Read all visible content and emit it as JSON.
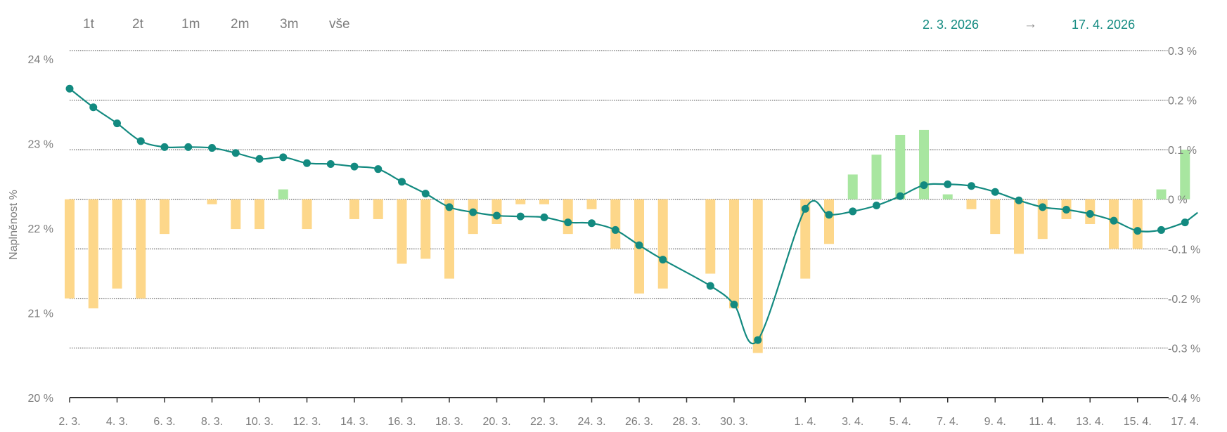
{
  "range_buttons": [
    "1t",
    "2t",
    "1m",
    "2m",
    "3m",
    "vše"
  ],
  "date_range": {
    "from": "2. 3. 2026",
    "arrow": "→",
    "to": "17. 4. 2026"
  },
  "colors": {
    "line": "#138a80",
    "bar_negative": "#fdd78a",
    "bar_positive": "#a8e6a0",
    "grid": "#444444",
    "text": "#7d7d7d",
    "accent": "#138a80"
  },
  "chart_data": {
    "type": "line",
    "ylabel": "Naplněnost %",
    "y_left_ticks": [
      "24 %",
      "23 %",
      "22 %",
      "21 %",
      "20 %"
    ],
    "y_right_ticks": [
      "0.3 %",
      "0.2 %",
      "0.1 %",
      "0 %",
      "-0.1 %",
      "-0.2 %",
      "-0.3 %",
      "-0.4 %"
    ],
    "ylim_left": [
      20,
      24.1
    ],
    "ylim_right": [
      -0.4,
      0.3
    ],
    "grid": true,
    "x_tick_labels": [
      "2. 3.",
      "4. 3.",
      "6. 3.",
      "8. 3.",
      "10. 3.",
      "12. 3.",
      "14. 3.",
      "16. 3.",
      "18. 3.",
      "20. 3.",
      "22. 3.",
      "24. 3.",
      "26. 3.",
      "28. 3.",
      "30. 3.",
      "1. 4.",
      "3. 4.",
      "5. 4.",
      "7. 4.",
      "9. 4.",
      "11. 4.",
      "13. 4.",
      "15. 4.",
      "17. 4."
    ],
    "series": [
      {
        "type": "line",
        "dates": [
          "2. 3.",
          "3. 3.",
          "4. 3.",
          "5. 3.",
          "6. 3.",
          "7. 3.",
          "8. 3.",
          "9. 3.",
          "10. 3.",
          "11. 3.",
          "12. 3.",
          "13. 3.",
          "14. 3.",
          "15. 3.",
          "16. 3.",
          "17. 3.",
          "18. 3.",
          "19. 3.",
          "20. 3.",
          "21. 3.",
          "22. 3.",
          "23. 3.",
          "24. 3.",
          "25. 3.",
          "26. 3.",
          "27. 3.",
          "29. 3.",
          "30. 3.",
          "31. 3.",
          "1. 4.",
          "2. 4.",
          "3. 4.",
          "4. 4.",
          "5. 4.",
          "6. 4.",
          "7. 4.",
          "8. 4.",
          "9. 4.",
          "10. 4.",
          "11. 4.",
          "12. 4.",
          "13. 4.",
          "14. 4.",
          "15. 4.",
          "16. 4.",
          "17. 4."
        ],
        "values": [
          23.65,
          23.43,
          23.24,
          23.03,
          22.96,
          22.96,
          22.95,
          22.89,
          22.82,
          22.84,
          22.77,
          22.76,
          22.73,
          22.7,
          22.55,
          22.41,
          22.25,
          22.19,
          22.15,
          22.14,
          22.13,
          22.07,
          22.06,
          21.98,
          21.8,
          21.63,
          21.32,
          21.1,
          20.68,
          22.23,
          22.16,
          22.2,
          22.27,
          22.38,
          22.51,
          22.52,
          22.5,
          22.43,
          22.33,
          22.25,
          22.22,
          22.17,
          22.09,
          21.97,
          21.98,
          22.07
        ]
      },
      {
        "type": "bar",
        "dates": [
          "2. 3.",
          "3. 3.",
          "4. 3.",
          "5. 3.",
          "6. 3.",
          "8. 3.",
          "9. 3.",
          "10. 3.",
          "11. 3.",
          "12. 3.",
          "14. 3.",
          "15. 3.",
          "16. 3.",
          "17. 3.",
          "18. 3.",
          "19. 3.",
          "20. 3.",
          "21. 3.",
          "22. 3.",
          "23. 3.",
          "24. 3.",
          "25. 3.",
          "26. 3.",
          "27. 3.",
          "29. 3.",
          "30. 3.",
          "31. 3.",
          "1. 4.",
          "2. 4.",
          "3. 4.",
          "4. 4.",
          "5. 4.",
          "6. 4.",
          "7. 4.",
          "8. 4.",
          "9. 4.",
          "10. 4.",
          "11. 4.",
          "12. 4.",
          "13. 4.",
          "14. 4.",
          "15. 4.",
          "16. 4.",
          "17. 4."
        ],
        "values": [
          -0.2,
          -0.22,
          -0.18,
          -0.2,
          -0.07,
          -0.01,
          -0.06,
          -0.06,
          0.02,
          -0.06,
          -0.04,
          -0.04,
          -0.13,
          -0.12,
          -0.16,
          -0.07,
          -0.05,
          -0.01,
          -0.01,
          -0.07,
          -0.02,
          -0.1,
          -0.19,
          -0.18,
          -0.15,
          -0.22,
          -0.31,
          -0.16,
          -0.09,
          0.05,
          0.09,
          0.13,
          0.14,
          0.01,
          -0.02,
          -0.07,
          -0.11,
          -0.08,
          -0.04,
          -0.05,
          -0.1,
          -0.1,
          0.02,
          0.1
        ]
      }
    ]
  }
}
